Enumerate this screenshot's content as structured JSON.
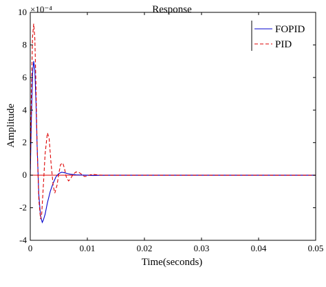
{
  "chart_data": {
    "type": "line",
    "title": "Response",
    "xlabel": "Time(seconds)",
    "ylabel": "Amplitude",
    "y_multiplier_label": "×10⁻⁴",
    "xlim": [
      0,
      0.05
    ],
    "ylim": [
      -4,
      10
    ],
    "x_ticks": [
      0,
      0.01,
      0.02,
      0.03,
      0.04,
      0.05
    ],
    "x_tick_labels": [
      "0",
      "0.01",
      "0.02",
      "0.03",
      "0.04",
      "0.05"
    ],
    "y_ticks": [
      -4,
      -2,
      0,
      2,
      4,
      6,
      8,
      10
    ],
    "y_tick_labels": [
      "-4",
      "-2",
      "0",
      "2",
      "4",
      "6",
      "8",
      "10"
    ],
    "grid": false,
    "legend_position": "top-right",
    "series": [
      {
        "name": "FOPID",
        "color": "#0000cc",
        "dash": "solid",
        "x": [
          0,
          0.0002,
          0.0004,
          0.0006,
          0.0008,
          0.001,
          0.0012,
          0.0015,
          0.0018,
          0.0021,
          0.0023,
          0.0026,
          0.003,
          0.0035,
          0.004,
          0.0045,
          0.005,
          0.0055,
          0.006,
          0.0065,
          0.007,
          0.008,
          0.009,
          0.01,
          0.011,
          0.012,
          0.014,
          0.016,
          0.02,
          0.05
        ],
        "y": [
          0,
          3.5,
          6.2,
          7.0,
          6.5,
          4.5,
          1.8,
          -1.2,
          -2.5,
          -2.9,
          -2.75,
          -2.4,
          -1.7,
          -1.0,
          -0.5,
          -0.1,
          0.1,
          0.18,
          0.15,
          0.1,
          0.06,
          0.02,
          0.01,
          0.0,
          -0.02,
          -0.01,
          0.0,
          0.0,
          0.0,
          0.0
        ]
      },
      {
        "name": "PID",
        "color": "#dd0000",
        "dash": "dashed",
        "x": [
          0,
          0.0002,
          0.0004,
          0.0006,
          0.0008,
          0.001,
          0.0012,
          0.0015,
          0.0018,
          0.002,
          0.0023,
          0.0026,
          0.003,
          0.0033,
          0.0036,
          0.004,
          0.0043,
          0.0047,
          0.005,
          0.0053,
          0.0057,
          0.006,
          0.0063,
          0.0067,
          0.007,
          0.0075,
          0.008,
          0.0085,
          0.009,
          0.0095,
          0.01,
          0.0105,
          0.011,
          0.012,
          0.013,
          0.05
        ],
        "y": [
          0,
          5.0,
          8.5,
          9.3,
          8.4,
          5.5,
          1.8,
          -1.5,
          -2.7,
          -2.4,
          -0.6,
          1.3,
          2.6,
          2.3,
          0.9,
          -0.6,
          -1.1,
          -0.6,
          0.1,
          0.65,
          0.75,
          0.4,
          -0.1,
          -0.35,
          -0.25,
          0.05,
          0.2,
          0.18,
          0.05,
          -0.08,
          -0.06,
          0.02,
          0.05,
          0.01,
          0.0,
          0.0
        ]
      }
    ]
  }
}
